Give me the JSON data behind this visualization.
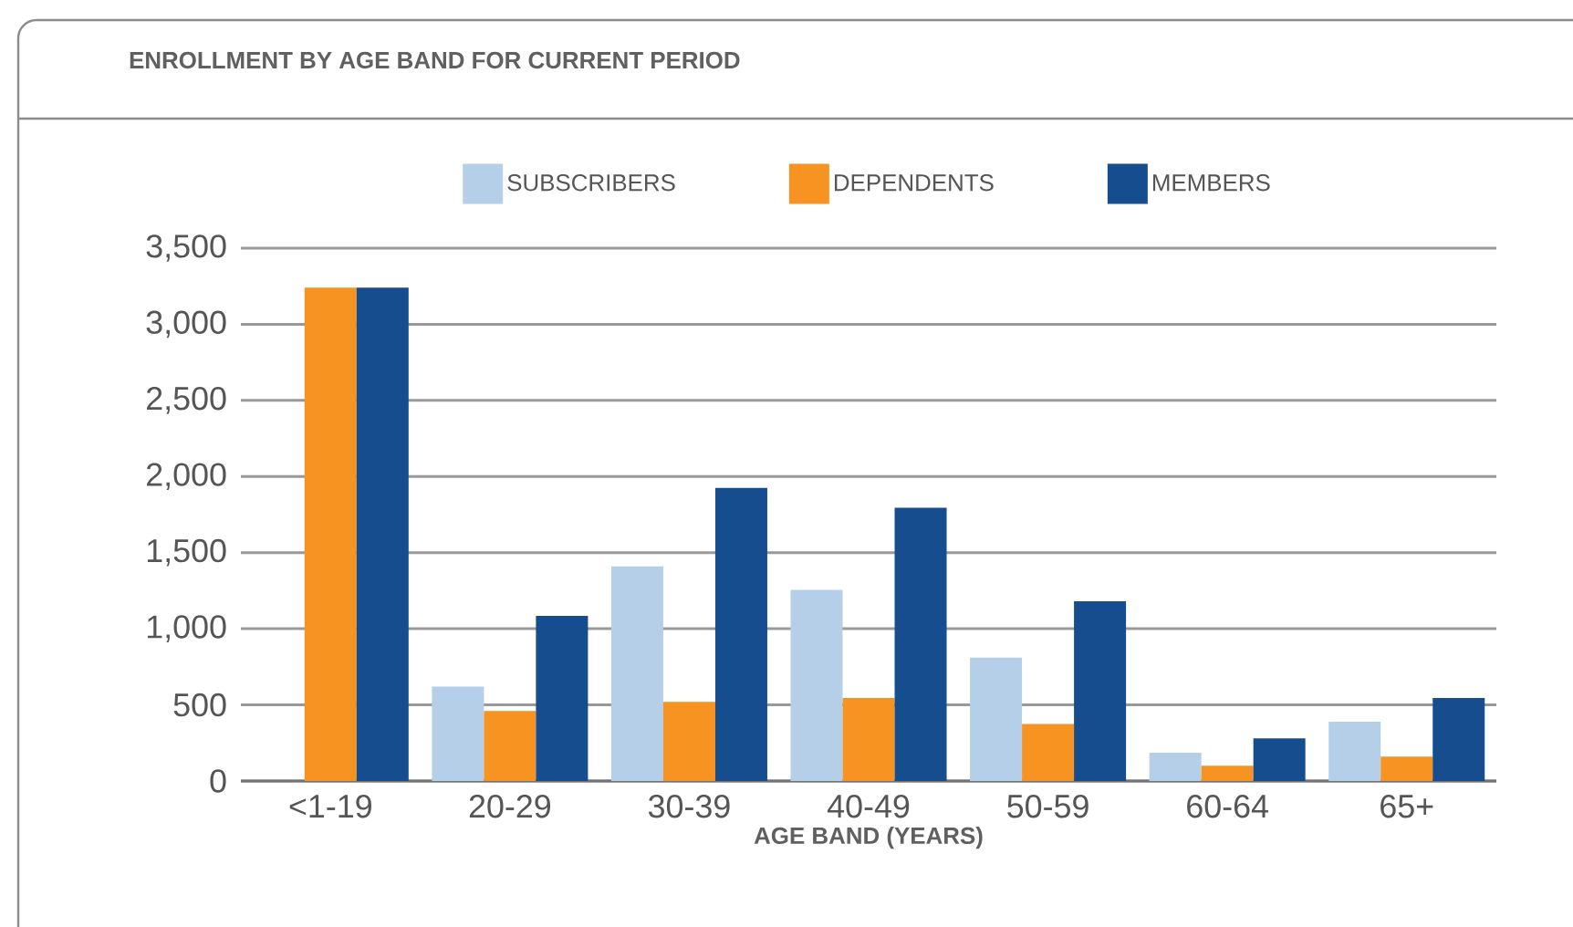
{
  "chart_data": {
    "type": "bar",
    "title": "ENROLLMENT BY AGE BAND FOR CURRENT PERIOD",
    "xlabel": "AGE BAND (YEARS)",
    "categories": [
      "<1-19",
      "20-29",
      "30-39",
      "40-49",
      "50-59",
      "60-64",
      "65+"
    ],
    "series": [
      {
        "name": "SUBSCRIBERS",
        "color": "#b5cfe9",
        "values": [
          0,
          620,
          1410,
          1255,
          810,
          185,
          390
        ]
      },
      {
        "name": "DEPENDENTS",
        "color": "#f79321",
        "values": [
          3240,
          460,
          520,
          545,
          375,
          100,
          160
        ]
      },
      {
        "name": "MEMBERS",
        "color": "#154d8e",
        "values": [
          3240,
          1085,
          1925,
          1795,
          1180,
          280,
          545
        ]
      }
    ],
    "ylim": [
      0,
      3500
    ],
    "yticks": [
      0,
      500,
      {
        "value": 1000,
        "label": "1,000"
      },
      {
        "value": 1500,
        "label": "1,500"
      },
      {
        "value": 2000,
        "label": "2,000"
      },
      {
        "value": 2500,
        "label": "2,500"
      },
      {
        "value": 3000,
        "label": "3,000"
      },
      {
        "value": 3500,
        "label": "3,500"
      }
    ],
    "grid": "y",
    "legend": "top"
  }
}
